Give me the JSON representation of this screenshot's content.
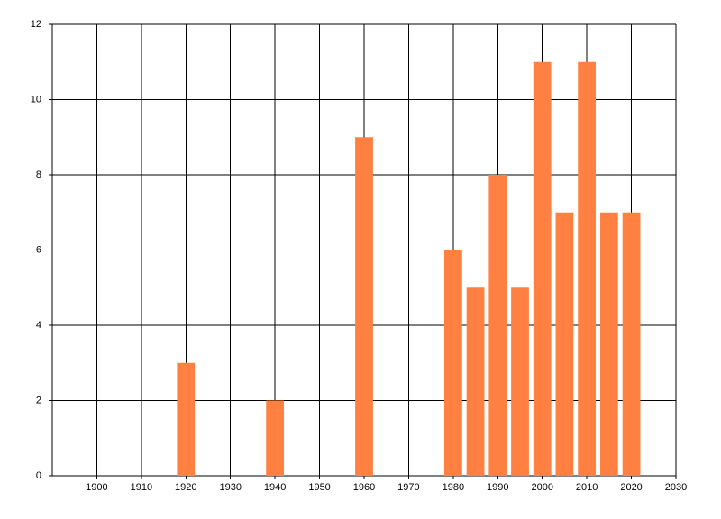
{
  "chart_data": {
    "type": "bar",
    "x": [
      1920,
      1940,
      1960,
      1980,
      1985,
      1990,
      1995,
      2000,
      2005,
      2010,
      2015,
      2020
    ],
    "values": [
      3,
      2,
      9,
      6,
      5,
      8,
      5,
      11,
      7,
      11,
      7,
      7
    ],
    "color": "#ff8040",
    "xlim": [
      1890,
      2030
    ],
    "xticks": [
      1900,
      1910,
      1920,
      1930,
      1940,
      1950,
      1960,
      1970,
      1980,
      1990,
      2000,
      2010,
      2020,
      2030
    ],
    "ylim": [
      0,
      12
    ],
    "yticks": [
      0,
      2,
      4,
      6,
      8,
      10,
      12
    ],
    "grid": true
  }
}
